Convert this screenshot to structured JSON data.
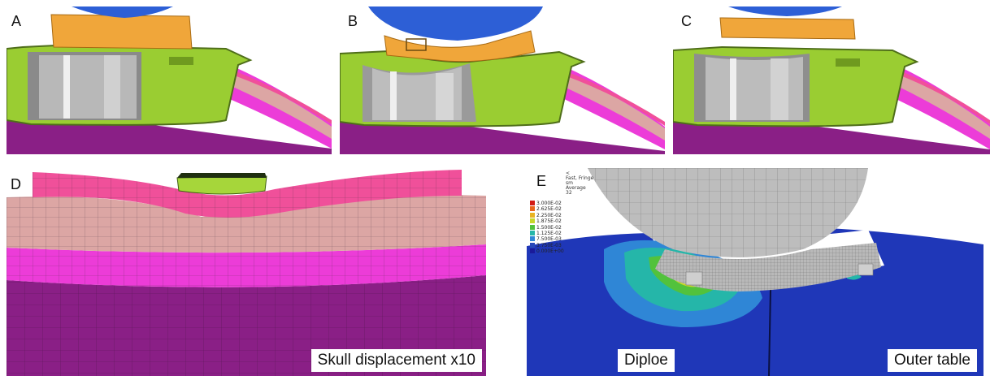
{
  "panels": {
    "a": {
      "label": "A"
    },
    "b": {
      "label": "B"
    },
    "c": {
      "label": "C"
    },
    "d": {
      "label": "D",
      "caption": "Skull displacement x10"
    },
    "e": {
      "label": "E",
      "caption_left": "Diploe",
      "caption_right": "Outer table",
      "header_lines": [
        "<",
        "Fast, Fringe",
        "sm",
        "Average",
        "32"
      ]
    }
  },
  "legend": {
    "values": [
      "3.000E-02",
      "2.625E-02",
      "2.250E-02",
      "1.875E-02",
      "1.500E-02",
      "1.125E-02",
      "7.500E-03",
      "3.750E-03",
      "0.000E+00"
    ],
    "colors": [
      "#d21a14",
      "#e8641b",
      "#e8b321",
      "#c8d72a",
      "#52c23c",
      "#25b6a9",
      "#2f86d6",
      "#2848b8",
      "#1a1a9a"
    ]
  },
  "colors": {
    "helmet_blue": "#2d5fd6",
    "pad_orange": "#f0a63a",
    "housing_green": "#9acd32",
    "scalp_pink": "#f0509a",
    "diploe_pink": "#dca6a4",
    "table_magenta": "#ec3cd8",
    "brain_purple": "#8a1f86",
    "contour_blue": "#1a2da8"
  }
}
